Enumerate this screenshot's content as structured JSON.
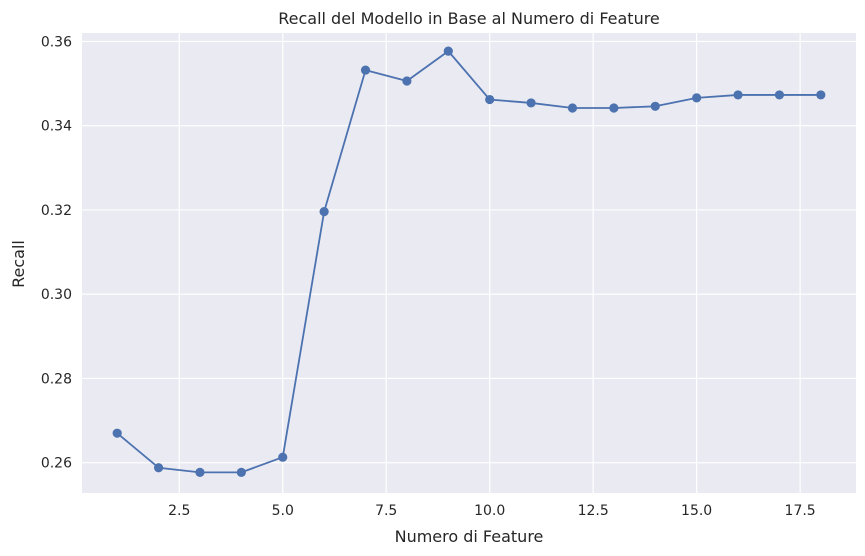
{
  "chart_data": {
    "type": "line",
    "title": "Recall del Modello in Base al Numero di Feature",
    "xlabel": "Numero di Feature",
    "ylabel": "Recall",
    "xlim": [
      0.15,
      18.85
    ],
    "ylim": [
      0.2528,
      0.362
    ],
    "xticks": [
      2.5,
      5.0,
      7.5,
      10.0,
      12.5,
      15.0,
      17.5
    ],
    "xtick_labels": [
      "2.5",
      "5.0",
      "7.5",
      "10.0",
      "12.5",
      "15.0",
      "17.5"
    ],
    "yticks": [
      0.26,
      0.28,
      0.3,
      0.32,
      0.34,
      0.36
    ],
    "ytick_labels": [
      "0.26",
      "0.28",
      "0.30",
      "0.32",
      "0.34",
      "0.36"
    ],
    "grid": true,
    "legend": false,
    "series": [
      {
        "color": "#4c72b0",
        "marker": "circle",
        "x": [
          1,
          2,
          3,
          4,
          5,
          6,
          7,
          8,
          9,
          10,
          11,
          12,
          13,
          14,
          15,
          16,
          17,
          18
        ],
        "y": [
          0.267,
          0.2588,
          0.2577,
          0.2577,
          0.2613,
          0.3196,
          0.3532,
          0.3506,
          0.3577,
          0.3462,
          0.3454,
          0.3442,
          0.3442,
          0.3446,
          0.3466,
          0.3473,
          0.3473,
          0.3473
        ]
      }
    ],
    "colors": {
      "plot_background": "#eaeaf2",
      "grid": "#ffffff",
      "text": "#262626"
    }
  }
}
